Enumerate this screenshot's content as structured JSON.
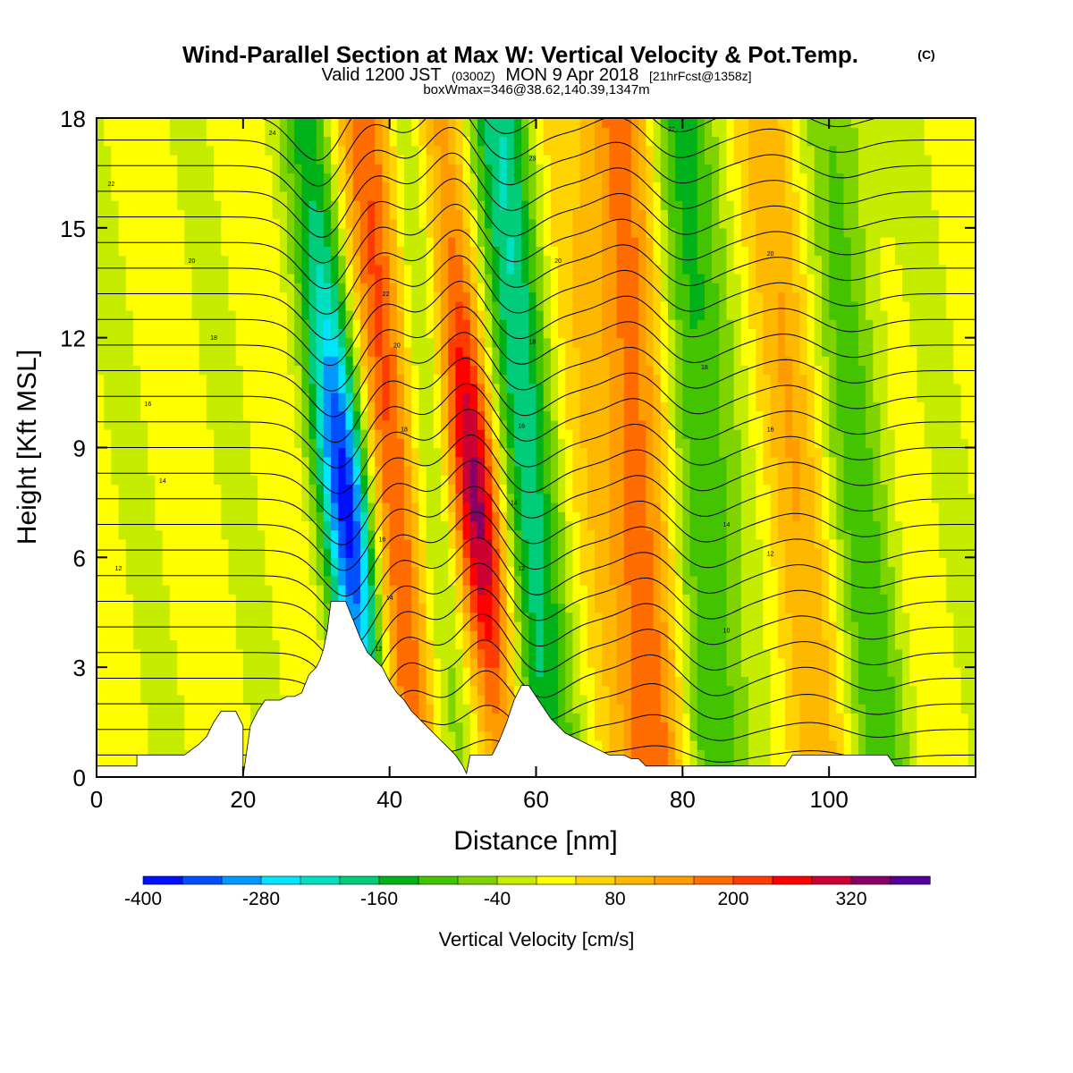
{
  "figure": {
    "title_main": "Wind-Parallel Section at Max W: Vertical Velocity & Pot.Temp.",
    "title_mark": "(C)",
    "subtitle_valid": "Valid 1200 JST",
    "subtitle_utc": "(0300Z)",
    "subtitle_date": "MON 9 Apr 2018",
    "subtitle_fcst": "[21hrFcst@1358z]",
    "box_info": "boxWmax=346@38.62,140.39,1347m"
  },
  "chart_data": {
    "type": "heatmap",
    "xlabel": "Distance [nm]",
    "ylabel": "Height [Kft MSL]",
    "xlim": [
      0,
      120
    ],
    "ylim": [
      0,
      18
    ],
    "xticks": [
      0,
      20,
      40,
      60,
      80,
      100
    ],
    "yticks": [
      0,
      3,
      6,
      9,
      12,
      15,
      18
    ],
    "colorbar": {
      "title": "Vertical Velocity [cm/s]",
      "tick_labels": [
        -400,
        -280,
        -160,
        -40,
        80,
        200,
        320
      ],
      "bounds": [
        -400,
        -360,
        -320,
        -280,
        -240,
        -200,
        -160,
        -120,
        -80,
        -40,
        0,
        40,
        80,
        120,
        160,
        200,
        240,
        280,
        320,
        360,
        400
      ],
      "colors": [
        "#0010ff",
        "#0050ff",
        "#0098ff",
        "#00e4ff",
        "#00e0c0",
        "#00cc7a",
        "#00b21a",
        "#44c400",
        "#7fd400",
        "#c6ec00",
        "#ffff00",
        "#ffd400",
        "#ffb800",
        "#ff9c00",
        "#ff6c00",
        "#ff3c00",
        "#ff0000",
        "#cc0033",
        "#880066",
        "#550099"
      ]
    },
    "field_features": [
      {
        "x": 33.5,
        "w": -390,
        "description": "downdraft"
      },
      {
        "x": 40.5,
        "w": 230
      },
      {
        "x": 44.5,
        "w": -120
      },
      {
        "x": 51.0,
        "w": 346,
        "description": "updraft"
      },
      {
        "x": 58.0,
        "w": -190
      },
      {
        "x": 66.0,
        "w": 40
      },
      {
        "x": 74.0,
        "w": 190
      },
      {
        "x": 82.0,
        "w": -150
      },
      {
        "x": 95.0,
        "w": 90
      },
      {
        "x": 104.0,
        "w": -100
      }
    ],
    "terrain": {
      "x": [
        0,
        5.5,
        5.5,
        10,
        12,
        14,
        15,
        16,
        17,
        18,
        19,
        20,
        20,
        21,
        22,
        23,
        24,
        25,
        26,
        27,
        28,
        29,
        30,
        30.5,
        31,
        31.5,
        32,
        33,
        34,
        35,
        36,
        37,
        38,
        39,
        40,
        41,
        42,
        43,
        44,
        45,
        46,
        47,
        48,
        49,
        50,
        50.5,
        51,
        52,
        53,
        54,
        55,
        56,
        57,
        58,
        59,
        60,
        61,
        62,
        63,
        64,
        65,
        66,
        67,
        68,
        69,
        70,
        71,
        72,
        73,
        74,
        75,
        76,
        77,
        78,
        79,
        80,
        81,
        82,
        83,
        84,
        85,
        86,
        87,
        88,
        89,
        90,
        91,
        92,
        93,
        94,
        95,
        96,
        97,
        98,
        99,
        100,
        101,
        102,
        103,
        104,
        105,
        106,
        107,
        108,
        109,
        110,
        111,
        112,
        113,
        114,
        115,
        116,
        117,
        118,
        119,
        120
      ],
      "y": [
        0.3,
        0.3,
        0.6,
        0.6,
        0.6,
        0.9,
        1.1,
        1.5,
        1.8,
        1.8,
        1.8,
        1.4,
        0.0,
        1.4,
        1.8,
        2.1,
        2.1,
        2.1,
        2.2,
        2.2,
        2.3,
        2.8,
        3.0,
        3.2,
        3.5,
        4.0,
        4.8,
        4.8,
        4.8,
        4.3,
        3.8,
        3.4,
        3.2,
        3.0,
        2.6,
        2.3,
        2.1,
        1.8,
        1.6,
        1.4,
        1.2,
        1.0,
        0.8,
        0.6,
        0.3,
        0.1,
        0.6,
        0.6,
        0.6,
        0.6,
        1.0,
        1.5,
        2.1,
        2.5,
        2.5,
        2.2,
        1.9,
        1.6,
        1.4,
        1.2,
        1.1,
        1.0,
        0.9,
        0.8,
        0.7,
        0.6,
        0.6,
        0.6,
        0.5,
        0.5,
        0.3,
        0.3,
        0.3,
        0.3,
        0.3,
        0.3,
        0.3,
        0.3,
        0.3,
        0.3,
        0.3,
        0.3,
        0.3,
        0.3,
        0.3,
        0.3,
        0.3,
        0.3,
        0.3,
        0.3,
        0.6,
        0.6,
        0.6,
        0.6,
        0.6,
        0.6,
        0.6,
        0.6,
        0.6,
        0.6,
        0.6,
        0.6,
        0.6,
        0.6,
        0.3,
        0.3,
        0.3,
        0.3,
        0.3,
        0.3,
        0.3,
        0.3,
        0.3,
        0.3,
        0.3,
        0.3
      ]
    },
    "potential_temperature_labels": [
      {
        "text": "24",
        "x": 24,
        "y": 17.6
      },
      {
        "text": "22",
        "x": 2,
        "y": 16.2
      },
      {
        "text": "20",
        "x": 13,
        "y": 14.1
      },
      {
        "text": "18",
        "x": 16,
        "y": 12.0
      },
      {
        "text": "16",
        "x": 7,
        "y": 10.2
      },
      {
        "text": "14",
        "x": 9,
        "y": 8.1
      },
      {
        "text": "12",
        "x": 3,
        "y": 5.7
      },
      {
        "text": "22",
        "x": 39.5,
        "y": 13.2
      },
      {
        "text": "20",
        "x": 41,
        "y": 11.8
      },
      {
        "text": "18",
        "x": 42,
        "y": 9.5
      },
      {
        "text": "16",
        "x": 39,
        "y": 6.5
      },
      {
        "text": "14",
        "x": 40,
        "y": 4.9
      },
      {
        "text": "12",
        "x": 38.5,
        "y": 3.5
      },
      {
        "text": "23",
        "x": 59.5,
        "y": 16.9
      },
      {
        "text": "20",
        "x": 63,
        "y": 14.1
      },
      {
        "text": "18",
        "x": 59.5,
        "y": 11.9
      },
      {
        "text": "16",
        "x": 58,
        "y": 9.6
      },
      {
        "text": "14",
        "x": 57,
        "y": 7.5
      },
      {
        "text": "12",
        "x": 58,
        "y": 5.7
      },
      {
        "text": "22",
        "x": 78.5,
        "y": 17.7
      },
      {
        "text": "18",
        "x": 83,
        "y": 11.2
      },
      {
        "text": "14",
        "x": 86,
        "y": 6.9
      },
      {
        "text": "10",
        "x": 86,
        "y": 4.0
      },
      {
        "text": "20",
        "x": 92,
        "y": 14.3
      },
      {
        "text": "16",
        "x": 92,
        "y": 9.5
      },
      {
        "text": "12",
        "x": 92,
        "y": 6.1
      }
    ]
  }
}
